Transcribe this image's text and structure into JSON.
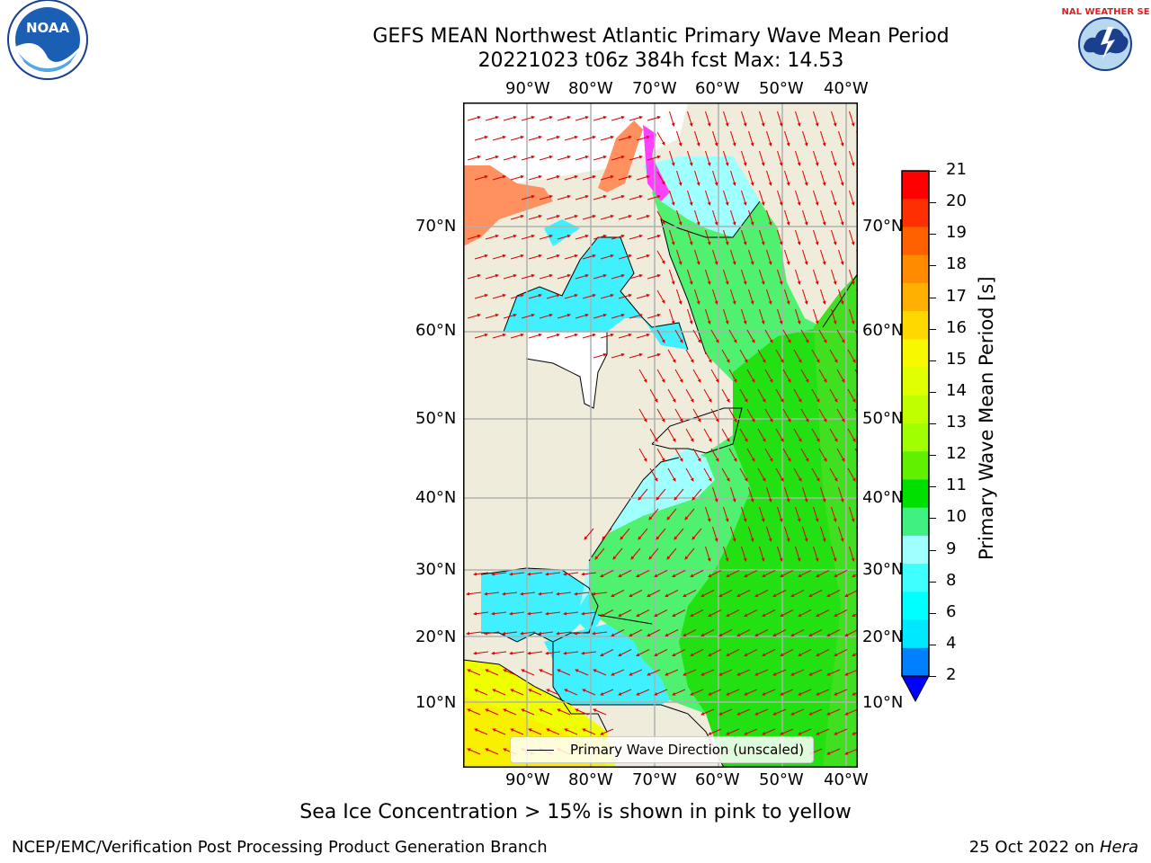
{
  "header": {
    "title_line1": "GEFS MEAN Northwest Atlantic Primary Wave Mean Period",
    "title_line2": "20221023 t06z 384h fcst   Max: 14.53"
  },
  "logos": {
    "noaa_text": "NOAA",
    "nws_text": "NATIONAL WEATHER SERVICE"
  },
  "map": {
    "lon_labels": [
      "90°W",
      "80°W",
      "70°W",
      "60°W",
      "50°W",
      "40°W"
    ],
    "lat_labels": [
      "70°N",
      "60°N",
      "50°N",
      "40°N",
      "30°N",
      "20°N",
      "10°N"
    ],
    "legend_label": "Primary Wave Direction (unscaled)"
  },
  "colorbar": {
    "label": "Primary Wave Mean Period [s]",
    "ticks": [
      "21",
      "20",
      "19",
      "18",
      "17",
      "16",
      "15",
      "14",
      "13",
      "12",
      "11",
      "10",
      "9",
      "8",
      "6",
      "4",
      "2"
    ],
    "colors": [
      "#ff0000",
      "#ff3000",
      "#ff5a00",
      "#ff8000",
      "#ffa000",
      "#ffc000",
      "#ffe800",
      "#f8ff00",
      "#e0ff00",
      "#c8ff00",
      "#a0ff00",
      "#60f000",
      "#00e000",
      "#40f080",
      "#80ffe0",
      "#40ffff",
      "#00ffff",
      "#00e8ff",
      "#0080ff",
      "#0040ff"
    ],
    "colors_legend": [
      "#ff0000",
      "#ff3000",
      "#ff6000",
      "#ff8c00",
      "#ffb000",
      "#ffd800",
      "#f8f800",
      "#e0ff00",
      "#c0ff00",
      "#a0ff00",
      "#60f000",
      "#00e000",
      "#40f080",
      "#a0ffff",
      "#40ffff",
      "#00ffff",
      "#00e8ff",
      "#0080ff"
    ]
  },
  "notes": {
    "sea_ice": "Sea Ice Concentration > 15% is shown in pink to yellow",
    "left": "NCEP/EMC/Verification Post Processing Product Generation Branch",
    "right_date": "25 Oct 2022 on ",
    "right_host": "Hera"
  }
}
